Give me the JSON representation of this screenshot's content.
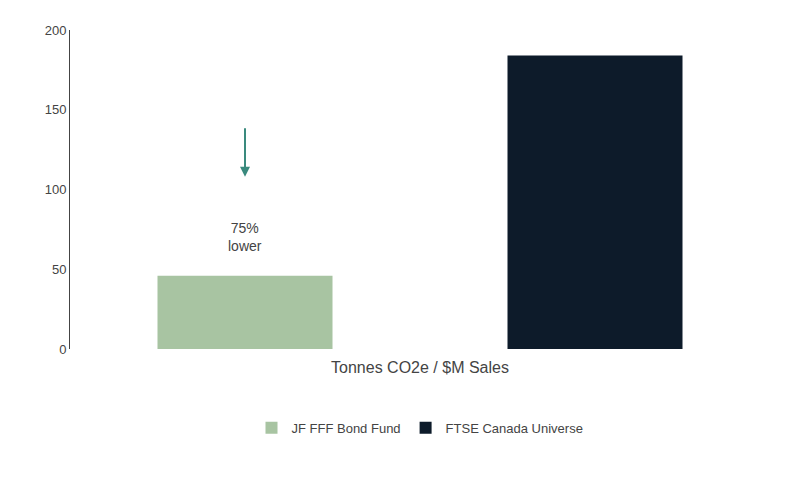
{
  "chart_data": {
    "type": "bar",
    "categories": [
      "JF FFF Bond Fund",
      "FTSE Canada Universe"
    ],
    "values": [
      46,
      184
    ],
    "colors": [
      "#a8c4a2",
      "#0d1b2a"
    ],
    "xlabel": "Tonnes CO2e / $M Sales",
    "ylim": [
      0,
      200
    ],
    "yticks": [
      0,
      50,
      100,
      150,
      200
    ],
    "annotations": [
      {
        "text": "75%\nlower",
        "color": "#3a8a7e"
      }
    ],
    "grid": false,
    "legend": "bottom",
    "tick_labels": "y"
  }
}
